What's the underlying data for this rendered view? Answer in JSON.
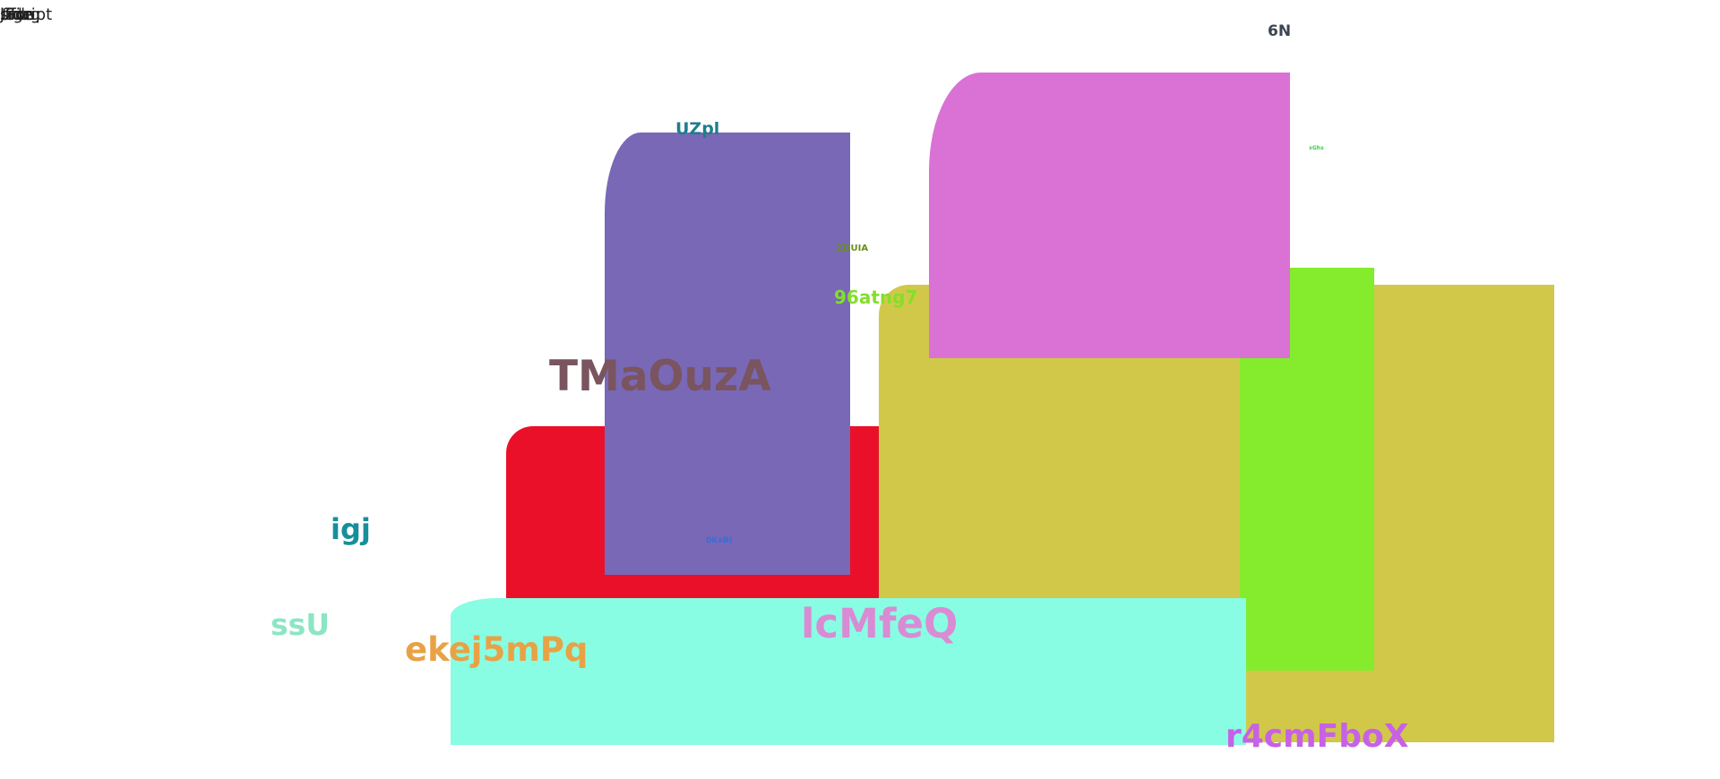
{
  "top_words": [
    "Jfide",
    "Script",
    "bfiag",
    "fide",
    "sige"
  ],
  "colors": {
    "crimson": "#ea1029",
    "periwinkle": "#7868b6",
    "olive": "#d1c84a",
    "orchid": "#da72d5",
    "lime": "#84ec2c",
    "mint": "#88fde3"
  },
  "labels": {
    "six_n": "6N",
    "uzpl": "UZpl",
    "small_green": "xGhs",
    "tiny_olive": "ZDUIA",
    "nine_six": "96atng7",
    "tmaouza": "TMaOuzA",
    "igj": "igj",
    "tiny_blue": "0KxBI",
    "ssu": "ssU",
    "ekej": "ekej5mPq",
    "lcmfeq": "lcMfeQ",
    "r4cm": "r4cmFboX"
  }
}
